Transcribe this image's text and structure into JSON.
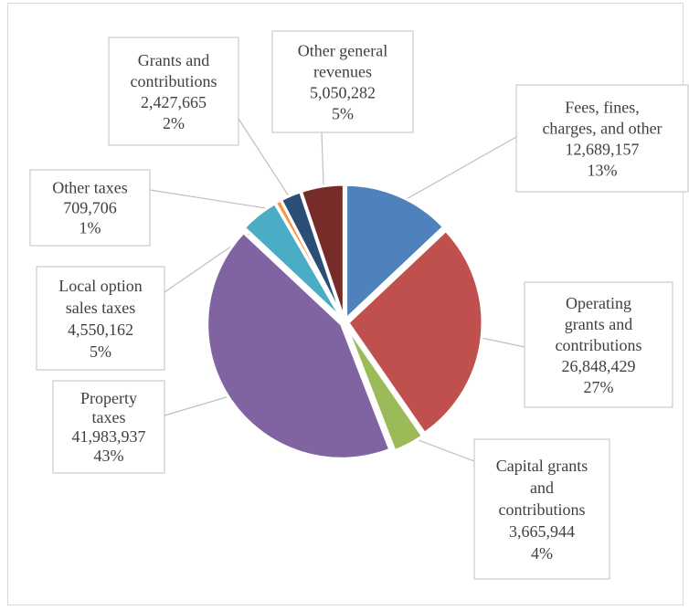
{
  "chart_data": {
    "type": "pie",
    "title": "",
    "series": [
      {
        "name": "",
        "values": [
          12689157,
          26848429,
          3665944,
          41983937,
          4550162,
          709706,
          2427665,
          5050282
        ]
      }
    ],
    "slices": [
      {
        "key": "fees",
        "label_lines": [
          "Fees, fines,",
          "charges, and other"
        ],
        "value": 12689157,
        "value_text": "12,689,157",
        "pct_text": "13%",
        "color": "#4f81bd"
      },
      {
        "key": "operating",
        "label_lines": [
          "Operating",
          "grants and",
          "contributions"
        ],
        "value": 26848429,
        "value_text": "26,848,429",
        "pct_text": "27%",
        "color": "#c0504d"
      },
      {
        "key": "capital",
        "label_lines": [
          "Capital grants",
          "and",
          "contributions"
        ],
        "value": 3665944,
        "value_text": "3,665,944",
        "pct_text": "4%",
        "color": "#9bbb59"
      },
      {
        "key": "property",
        "label_lines": [
          "Property",
          "taxes"
        ],
        "value": 41983937,
        "value_text": "41,983,937",
        "pct_text": "43%",
        "color": "#8064a2"
      },
      {
        "key": "local",
        "label_lines": [
          "Local option",
          "sales taxes"
        ],
        "value": 4550162,
        "value_text": "4,550,162",
        "pct_text": "5%",
        "color": "#4bacc6"
      },
      {
        "key": "othertax",
        "label_lines": [
          "Other taxes"
        ],
        "value": 709706,
        "value_text": "709,706",
        "pct_text": "1%",
        "color": "#f79646"
      },
      {
        "key": "grants",
        "label_lines": [
          "Grants and",
          "contributions"
        ],
        "value": 2427665,
        "value_text": "2,427,665",
        "pct_text": "2%",
        "color": "#2c4d75"
      },
      {
        "key": "othergen",
        "label_lines": [
          "Other general",
          "revenues"
        ],
        "value": 5050282,
        "value_text": "5,050,282",
        "pct_text": "5%",
        "color": "#772c2a"
      }
    ],
    "legend": "none",
    "start_angle": "12 o'clock, clockwise"
  }
}
